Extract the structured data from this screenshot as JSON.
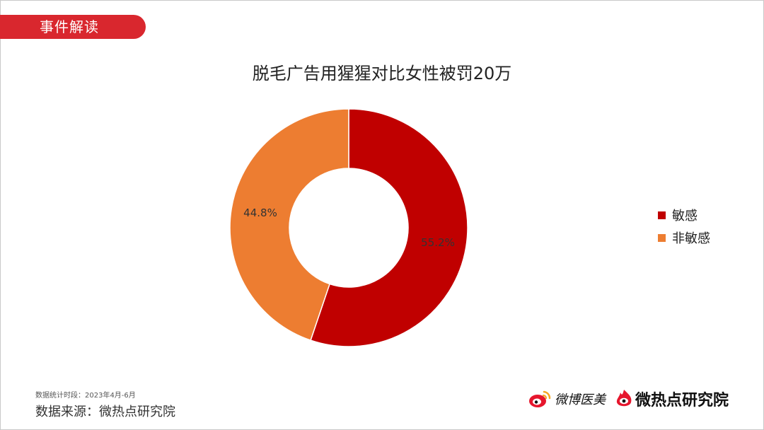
{
  "section_tag": "事件解读",
  "title": "脱毛广告用猩猩对比女性被罚20万",
  "colors": {
    "accent": "#d9272e",
    "sensitive": "#c00000",
    "non_sensitive": "#ed7d31"
  },
  "chart_data": {
    "type": "pie",
    "style": "donut",
    "title": "脱毛广告用猩猩对比女性被罚20万",
    "legend_position": "right",
    "series": [
      {
        "name": "敏感",
        "value": 55.2,
        "label": "55.2%",
        "color": "#c00000"
      },
      {
        "name": "非敏感",
        "value": 44.8,
        "label": "44.8%",
        "color": "#ed7d31"
      }
    ]
  },
  "footer": {
    "period": "数据统计时段：2023年4月-6月",
    "source": "数据来源：微热点研究院"
  },
  "logos": {
    "weibo_beauty": "微博医美",
    "wrd": "微热点研究院"
  }
}
